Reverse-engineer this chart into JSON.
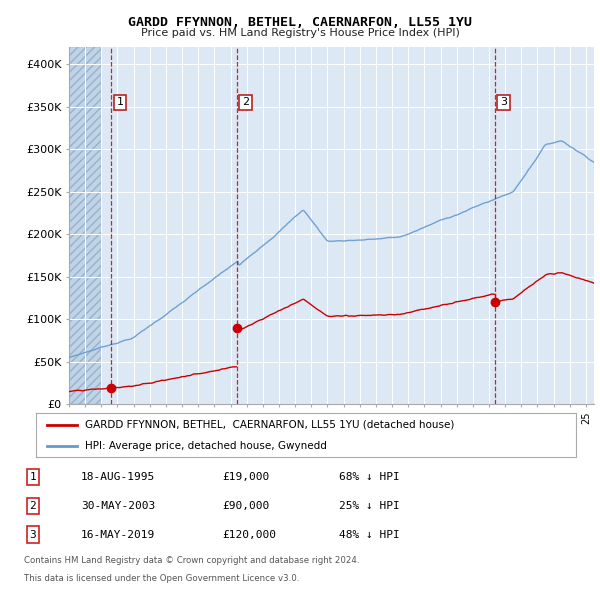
{
  "title": "GARDD FFYNNON, BETHEL, CAERNARFON, LL55 1YU",
  "subtitle": "Price paid vs. HM Land Registry's House Price Index (HPI)",
  "ylim": [
    0,
    420000
  ],
  "yticks": [
    0,
    50000,
    100000,
    150000,
    200000,
    250000,
    300000,
    350000,
    400000
  ],
  "ytick_labels": [
    "£0",
    "£50K",
    "£100K",
    "£150K",
    "£200K",
    "£250K",
    "£300K",
    "£350K",
    "£400K"
  ],
  "background_color": "#ffffff",
  "plot_bg_color": "#dce9f5",
  "hatched_bg_color": "#c0d4e8",
  "legend_entries": [
    "GARDD FFYNNON, BETHEL,  CAERNARFON, LL55 1YU (detached house)",
    "HPI: Average price, detached house, Gwynedd"
  ],
  "sale_year_floats": [
    1995.63,
    2003.42,
    2019.38
  ],
  "sale_prices": [
    19000,
    90000,
    120000
  ],
  "sale_labels": [
    "1",
    "2",
    "3"
  ],
  "footer_line1": "Contains HM Land Registry data © Crown copyright and database right 2024.",
  "footer_line2": "This data is licensed under the Open Government Licence v3.0.",
  "table_rows": [
    [
      "1",
      "18-AUG-1995",
      "£19,000",
      "68% ↓ HPI"
    ],
    [
      "2",
      "30-MAY-2003",
      "£90,000",
      "25% ↓ HPI"
    ],
    [
      "3",
      "16-MAY-2019",
      "£120,000",
      "48% ↓ HPI"
    ]
  ],
  "red_color": "#cc0000",
  "blue_color": "#6699cc",
  "hatched_end_year": 1995.0,
  "xlim": [
    1993.0,
    2025.5
  ]
}
